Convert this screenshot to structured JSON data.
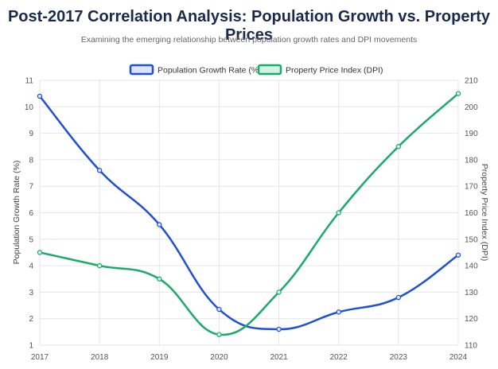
{
  "chart_data": {
    "type": "line",
    "title": "Post-2017 Correlation Analysis: Population Growth vs. Property Prices",
    "subtitle": "Examining the emerging relationship between population growth rates and DPI movements",
    "x": [
      "2017",
      "2018",
      "2019",
      "2020",
      "2021",
      "2022",
      "2023",
      "2024"
    ],
    "y_left": {
      "label": "Population Growth Rate (%)",
      "min": 1,
      "max": 11,
      "ticks": [
        "1",
        "2",
        "3",
        "4",
        "5",
        "6",
        "7",
        "8",
        "9",
        "10",
        "11"
      ]
    },
    "y_right": {
      "label": "Property Price Index (DPI)",
      "min": 110,
      "max": 210,
      "ticks": [
        "110",
        "120",
        "130",
        "140",
        "150",
        "160",
        "170",
        "180",
        "190",
        "200",
        "210"
      ]
    },
    "series": [
      {
        "name": "Population Growth Rate (%)",
        "axis": "left",
        "color": "#1f4fd8",
        "fill": "#dbe4fb",
        "values": [
          10.4,
          7.6,
          5.55,
          2.35,
          1.6,
          2.25,
          2.8,
          4.4
        ]
      },
      {
        "name": "Property Price Index (DPI)",
        "axis": "right",
        "color": "#1aaa6a",
        "fill": "#d4f2e3",
        "values": [
          145,
          140,
          135,
          114,
          130,
          160,
          185,
          205
        ]
      }
    ],
    "grid": true,
    "legend": "top-center"
  }
}
